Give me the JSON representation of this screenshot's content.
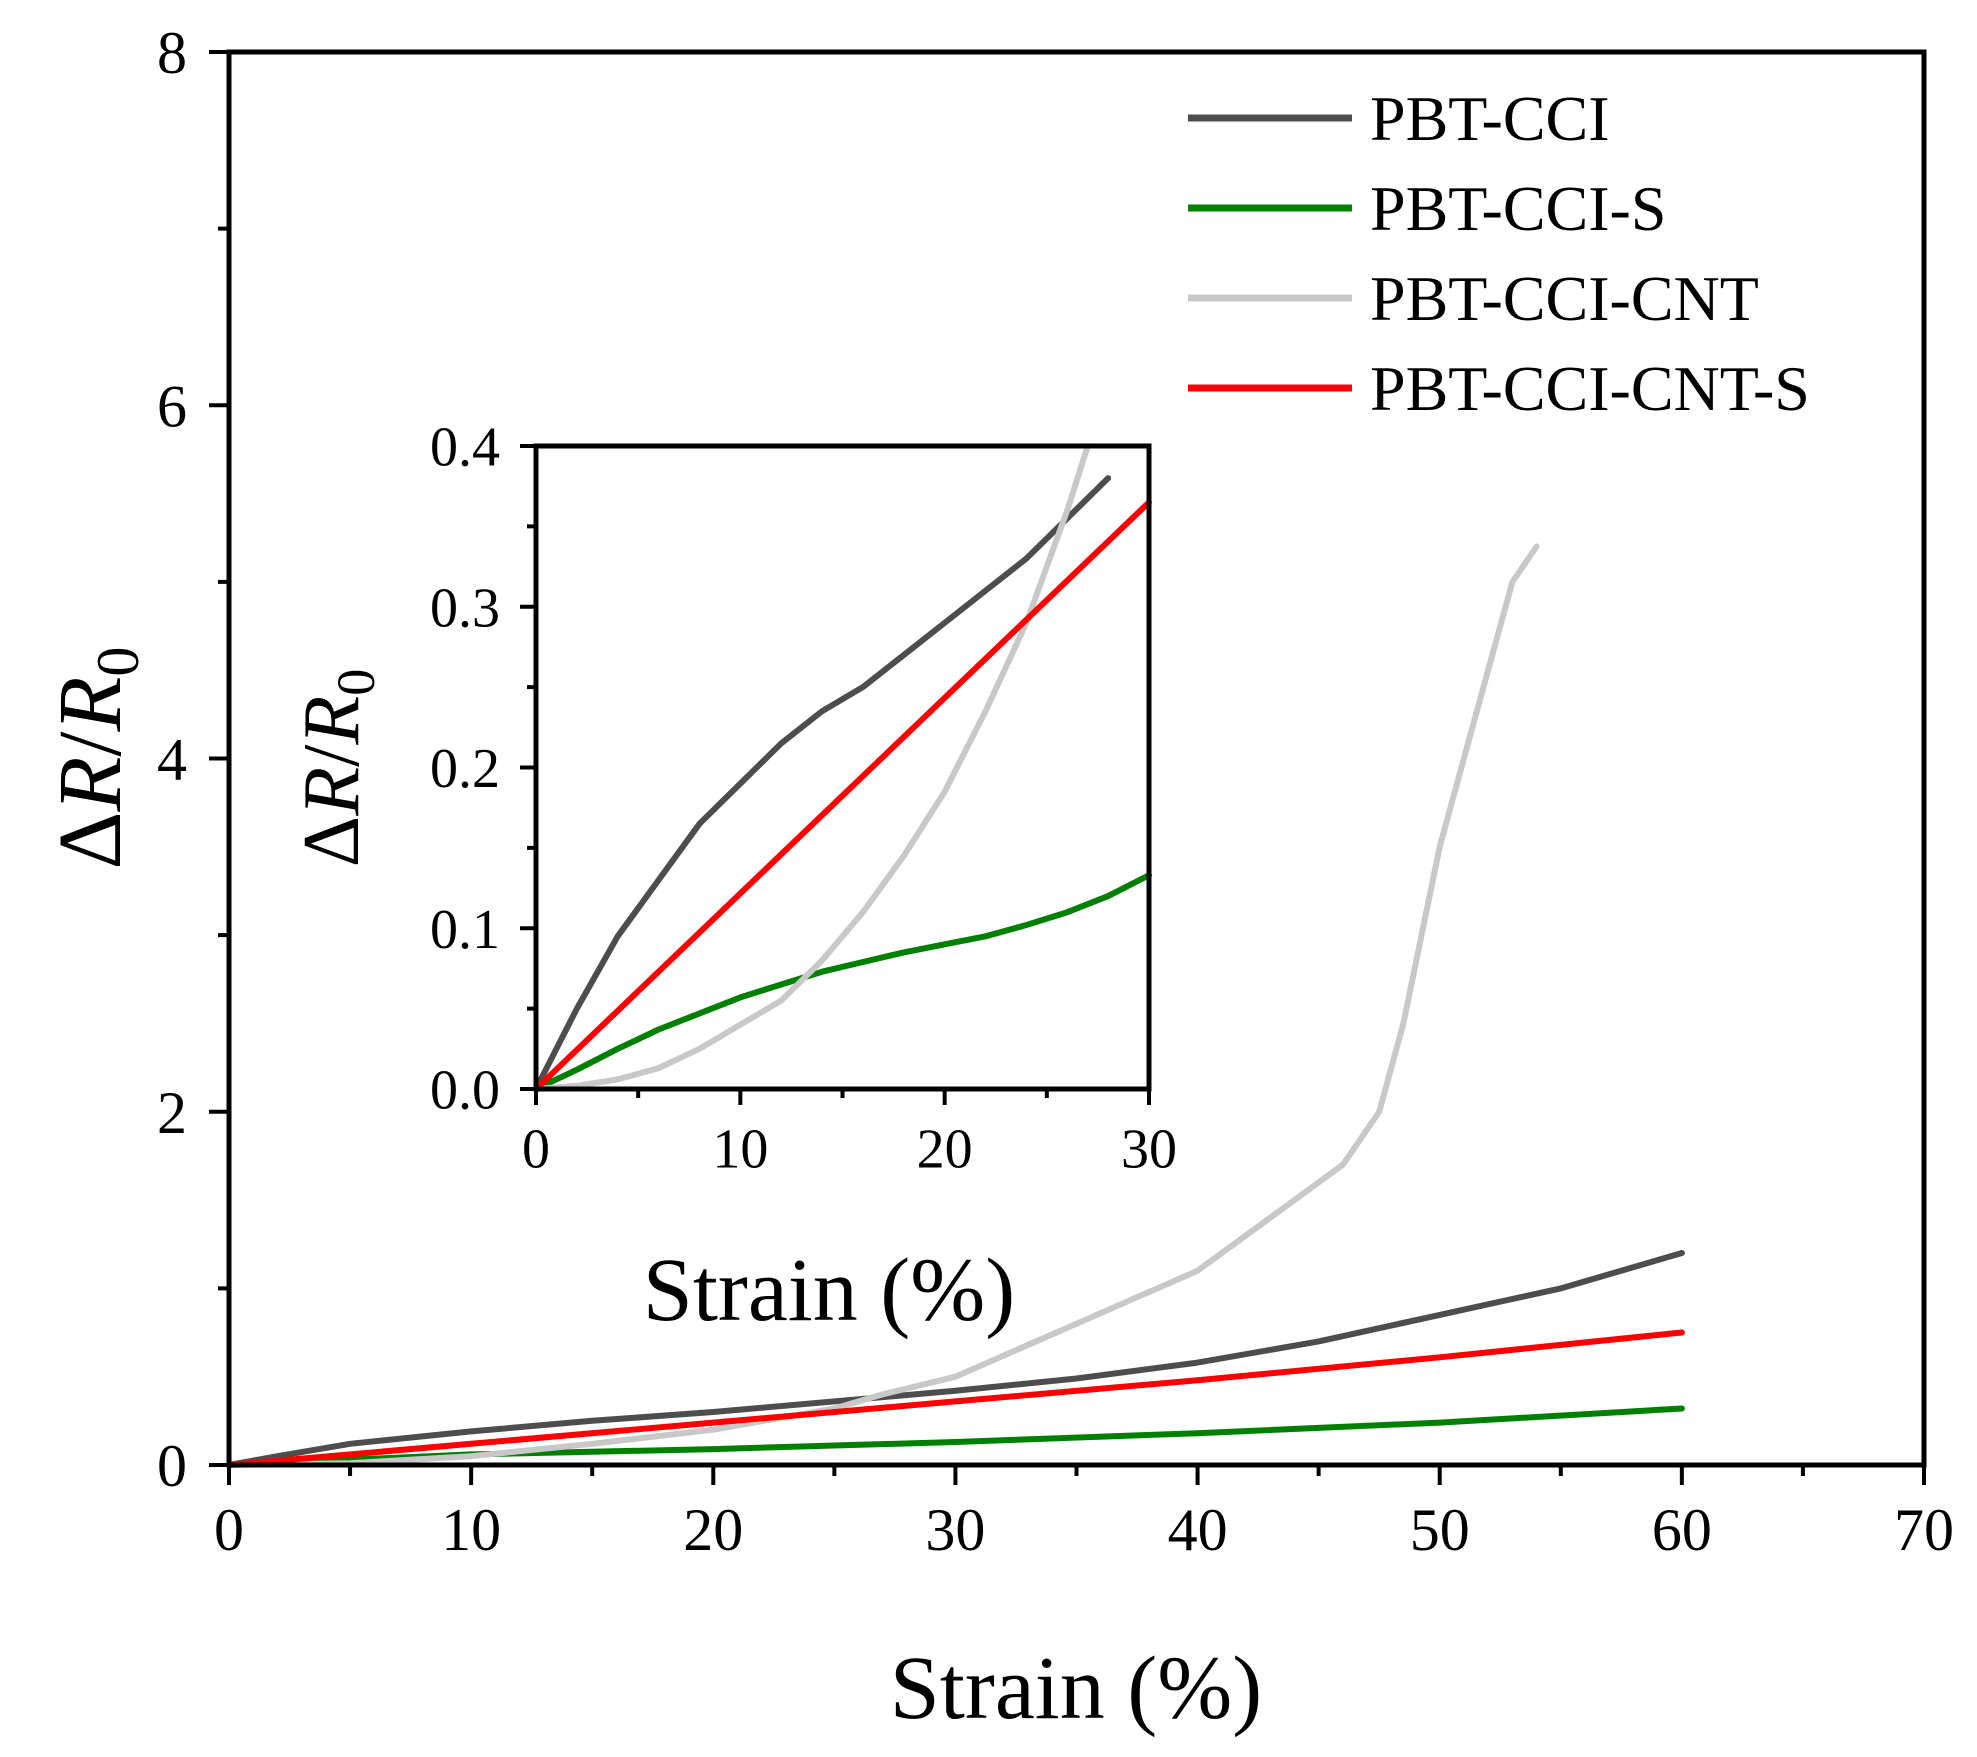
{
  "chart_data": [
    {
      "id": "main",
      "type": "line",
      "xlabel": "Strain (%)",
      "ylabel": "ΔR/R0",
      "ylabel_parts": {
        "delta": "Δ",
        "r": "R",
        "slash": "/",
        "r0": "R",
        "sub": "0"
      },
      "xlim": [
        0,
        70
      ],
      "ylim": [
        0,
        8
      ],
      "xticks": [
        0,
        10,
        20,
        30,
        40,
        50,
        60,
        70
      ],
      "yticks": [
        0,
        2,
        4,
        6,
        8
      ],
      "legend_position": "top-right",
      "series": [
        {
          "name": "PBT-CCI",
          "color": "#4d4d4d",
          "x": [
            0,
            2,
            5,
            10,
            15,
            20,
            25,
            30,
            35,
            40,
            45,
            50,
            55,
            60
          ],
          "y": [
            0,
            0.05,
            0.12,
            0.19,
            0.25,
            0.3,
            0.36,
            0.42,
            0.49,
            0.58,
            0.7,
            0.85,
            1.0,
            1.2
          ]
        },
        {
          "name": "PBT-CCI-S",
          "color": "#008000",
          "x": [
            0,
            10,
            20,
            30,
            40,
            50,
            60
          ],
          "y": [
            0,
            0.06,
            0.09,
            0.13,
            0.18,
            0.24,
            0.32
          ]
        },
        {
          "name": "PBT-CCI-CNT",
          "color": "#c8c8c8",
          "x": [
            0,
            5,
            10,
            15,
            20,
            25,
            27,
            30,
            35,
            40,
            43,
            46,
            47.5,
            48.5,
            50,
            52,
            53,
            54
          ],
          "y": [
            0,
            0.01,
            0.05,
            0.12,
            0.2,
            0.32,
            0.4,
            0.5,
            0.8,
            1.1,
            1.4,
            1.7,
            2.0,
            2.5,
            3.5,
            4.5,
            5.0,
            5.2
          ]
        },
        {
          "name": "PBT-CCI-CNT-S",
          "color": "#ff0000",
          "x": [
            0,
            10,
            20,
            30,
            40,
            50,
            60
          ],
          "y": [
            0,
            0.12,
            0.24,
            0.36,
            0.48,
            0.61,
            0.75
          ]
        }
      ]
    },
    {
      "id": "inset",
      "type": "line",
      "xlabel": "Strain (%)",
      "ylabel": "ΔR/R0",
      "ylabel_parts": {
        "delta": "Δ",
        "r": "R",
        "slash": "/",
        "r0": "R",
        "sub": "0"
      },
      "xlim": [
        0,
        30
      ],
      "ylim": [
        0,
        0.4
      ],
      "xticks": [
        0,
        10,
        20,
        30
      ],
      "yticks": [
        0.0,
        0.1,
        0.2,
        0.3,
        0.4
      ],
      "ytick_labels": [
        "0.0",
        "0.1",
        "0.2",
        "0.3",
        "0.4"
      ],
      "series": [
        {
          "name": "PBT-CCI",
          "color": "#4d4d4d",
          "x": [
            0,
            1,
            2,
            4,
            6,
            8,
            10,
            12,
            14,
            16,
            18,
            20,
            22,
            24,
            26,
            28
          ],
          "y": [
            0,
            0.025,
            0.05,
            0.095,
            0.13,
            0.165,
            0.19,
            0.215,
            0.235,
            0.25,
            0.27,
            0.29,
            0.31,
            0.33,
            0.355,
            0.38
          ]
        },
        {
          "name": "PBT-CCI-S",
          "color": "#008000",
          "x": [
            0,
            2,
            4,
            6,
            8,
            10,
            12,
            14,
            16,
            18,
            20,
            22,
            24,
            26,
            28,
            30
          ],
          "y": [
            0,
            0.012,
            0.025,
            0.037,
            0.047,
            0.057,
            0.065,
            0.073,
            0.079,
            0.085,
            0.09,
            0.095,
            0.102,
            0.11,
            0.12,
            0.133
          ]
        },
        {
          "name": "PBT-CCI-CNT",
          "color": "#c8c8c8",
          "x": [
            0,
            2,
            4,
            6,
            8,
            10,
            12,
            14,
            16,
            18,
            20,
            22,
            24,
            25,
            26,
            27
          ],
          "y": [
            0,
            0.002,
            0.006,
            0.013,
            0.025,
            0.04,
            0.055,
            0.08,
            0.11,
            0.145,
            0.185,
            0.235,
            0.29,
            0.325,
            0.36,
            0.4
          ]
        },
        {
          "name": "PBT-CCI-CNT-S",
          "color": "#ff0000",
          "x": [
            0,
            30
          ],
          "y": [
            0,
            0.365
          ]
        }
      ]
    }
  ]
}
